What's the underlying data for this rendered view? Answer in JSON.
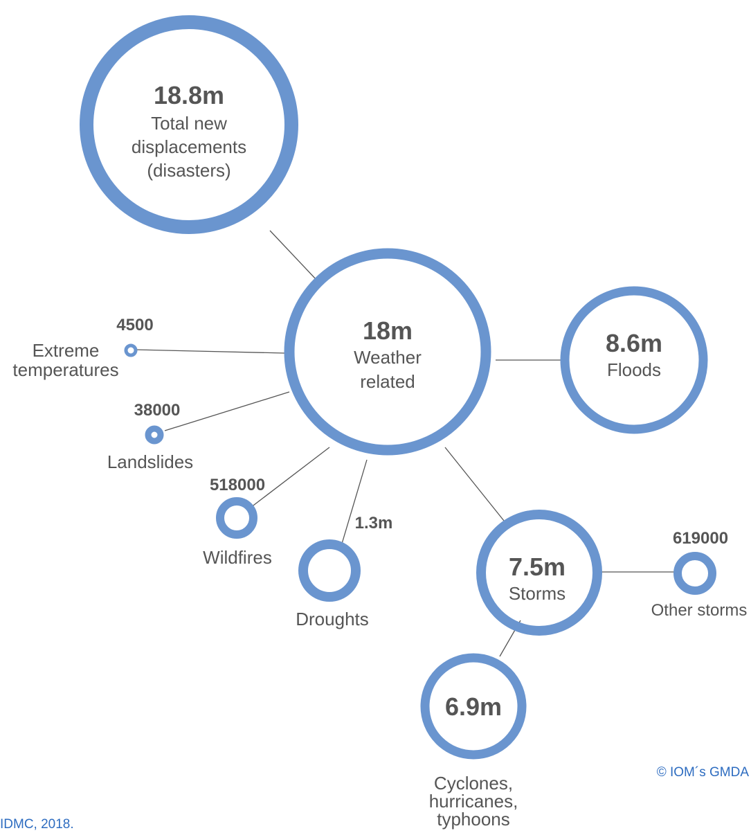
{
  "colors": {
    "ring": "#6a95cf",
    "connector": "#555555",
    "value_text": "#555555",
    "label_text": "#555555",
    "credit_text": "#2d6cc0"
  },
  "nodes": {
    "total": {
      "value": "18.8m",
      "label_lines": [
        "Total new",
        "displacements",
        "(disasters)"
      ]
    },
    "weather": {
      "value": "18m",
      "label_lines": [
        "Weather",
        "related"
      ]
    },
    "floods": {
      "value": "8.6m",
      "label_lines": [
        "Floods"
      ]
    },
    "extreme_temperatures": {
      "value": "4500",
      "label_lines": [
        "Extreme",
        "temperatures"
      ]
    },
    "landslides": {
      "value": "38000",
      "label_lines": [
        "Landslides"
      ]
    },
    "wildfires": {
      "value": "518000",
      "label_lines": [
        "Wildfires"
      ]
    },
    "droughts": {
      "value": "1.3m",
      "label_lines": [
        "Droughts"
      ]
    },
    "storms": {
      "value": "7.5m",
      "label_lines": [
        "Storms"
      ]
    },
    "other_storms": {
      "value": "619000",
      "label_lines": [
        "Other storms"
      ]
    },
    "cyclones": {
      "value": "6.9m",
      "label_lines": [
        "Cyclones,",
        "hurricanes,",
        "typhoons"
      ]
    }
  },
  "credits": {
    "copyright": "© IOM´s GMDA",
    "source": "IDMC, 2018."
  }
}
